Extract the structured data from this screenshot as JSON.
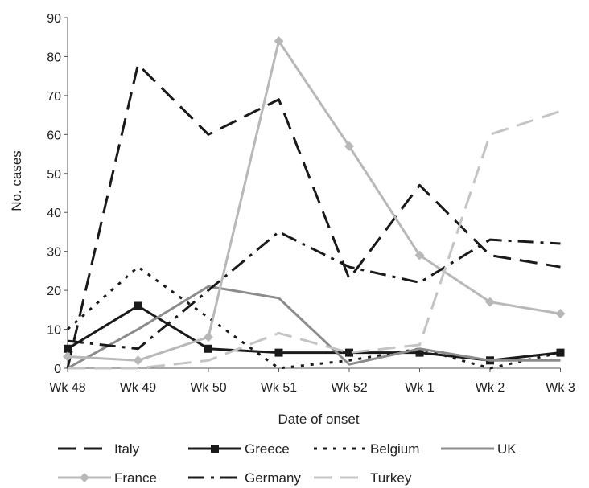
{
  "chart_data": {
    "type": "line",
    "title": "",
    "xlabel": "Date of onset",
    "ylabel": "No. cases",
    "categories": [
      "Wk 48",
      "Wk 49",
      "Wk 50",
      "Wk 51",
      "Wk 52",
      "Wk 1",
      "Wk 2",
      "Wk 3"
    ],
    "ylim": [
      0,
      90
    ],
    "yticks": [
      0,
      10,
      20,
      30,
      40,
      50,
      60,
      70,
      80,
      90
    ],
    "grid": false,
    "legend_position": "bottom",
    "series": [
      {
        "name": "Italy",
        "values": [
          0,
          78,
          60,
          69,
          23,
          47,
          29,
          26
        ],
        "color": "#1a1a1a",
        "dash": "long-dash",
        "marker": "none"
      },
      {
        "name": "Greece",
        "values": [
          5,
          16,
          5,
          4,
          4,
          4,
          2,
          4
        ],
        "color": "#1a1a1a",
        "dash": "solid",
        "marker": "square"
      },
      {
        "name": "Belgium",
        "values": [
          10,
          26,
          13,
          0,
          2,
          5,
          0,
          4
        ],
        "color": "#1a1a1a",
        "dash": "dotted",
        "marker": "none"
      },
      {
        "name": "UK",
        "values": [
          0,
          10,
          21,
          18,
          1,
          5,
          2,
          2
        ],
        "color": "#8c8c8c",
        "dash": "solid",
        "marker": "none"
      },
      {
        "name": "France",
        "values": [
          3,
          2,
          8,
          84,
          57,
          29,
          17,
          14
        ],
        "color": "#b8b8b8",
        "dash": "solid",
        "marker": "diamond"
      },
      {
        "name": "Germany",
        "values": [
          7,
          5,
          20,
          35,
          26,
          22,
          33,
          32
        ],
        "color": "#1a1a1a",
        "dash": "dash-dot",
        "marker": "none"
      },
      {
        "name": "Turkey",
        "values": [
          0,
          0,
          2,
          9,
          4,
          6,
          60,
          66
        ],
        "color": "#c4c4c4",
        "dash": "long-dash",
        "marker": "none"
      }
    ]
  }
}
